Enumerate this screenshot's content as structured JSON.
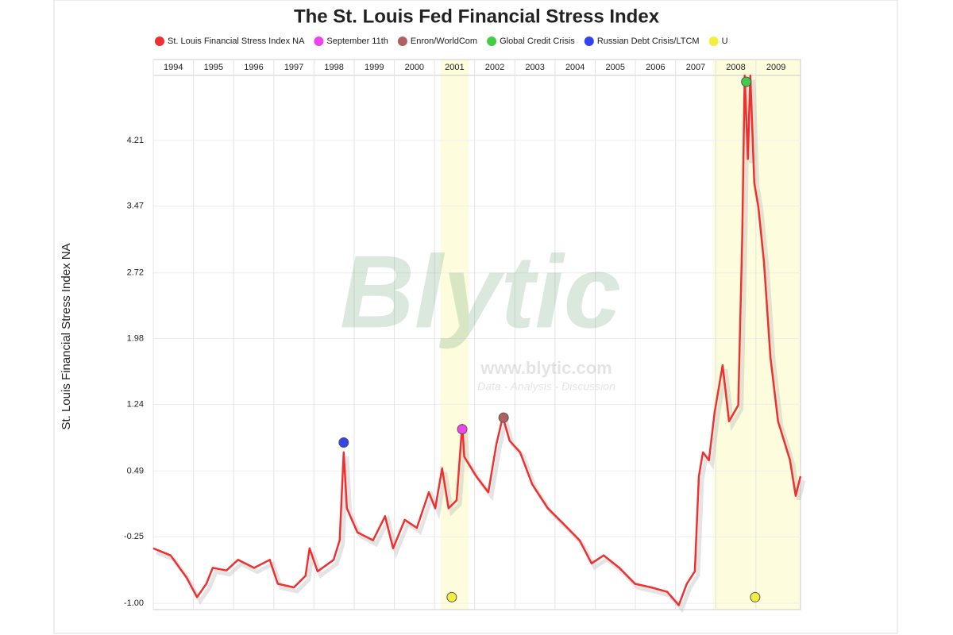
{
  "chart_data": {
    "type": "line",
    "title": "The St. Louis Fed Financial Stress Index",
    "y_label": "St. Louis Financial Stress Index NA",
    "watermark": {
      "logo": "Blytic",
      "url": "www.blytic.com",
      "tagline": "Data - Analysis - Discussion"
    },
    "xlim": [
      1994,
      2010.11
    ],
    "xticks": [
      1994,
      1995,
      1996,
      1997,
      1998,
      1999,
      2000,
      2001,
      2002,
      2003,
      2004,
      2005,
      2006,
      2007,
      2008,
      2009
    ],
    "ylim": [
      -1.07,
      5.12
    ],
    "yticks": [
      {
        "value": -1,
        "label": "-1.00"
      },
      -0.25,
      0.49,
      1.24,
      1.98,
      2.72,
      3.47,
      4.21
    ],
    "grid": true,
    "series": [
      {
        "name": "St. Louis Financial Stress Index NA",
        "color": "#f03030",
        "style": "line",
        "x": [
          1994.0,
          1994.43,
          1994.83,
          1995.09,
          1995.32,
          1995.48,
          1995.82,
          1996.11,
          1996.51,
          1996.9,
          1997.1,
          1997.5,
          1997.79,
          1997.89,
          1998.09,
          1998.49,
          1998.64,
          1998.74,
          1998.82,
          1999.08,
          1999.47,
          1999.77,
          1999.97,
          2000.26,
          2000.56,
          2000.86,
          2001.02,
          2001.19,
          2001.35,
          2001.55,
          2001.69,
          2001.74,
          2002.04,
          2002.34,
          2002.54,
          2002.7,
          2002.87,
          2003.13,
          2003.43,
          2003.82,
          2004.22,
          2004.61,
          2004.91,
          2005.21,
          2005.6,
          2005.99,
          2006.39,
          2006.79,
          2007.08,
          2007.28,
          2007.48,
          2007.58,
          2007.68,
          2007.83,
          2007.97,
          2008.17,
          2008.33,
          2008.56,
          2008.66,
          2008.72,
          2008.8,
          2008.86,
          2008.96,
          2009.06,
          2009.2,
          2009.36,
          2009.55,
          2009.85,
          2009.99,
          2010.11
        ],
        "values": [
          -0.38,
          -0.46,
          -0.71,
          -0.93,
          -0.78,
          -0.6,
          -0.63,
          -0.51,
          -0.6,
          -0.51,
          -0.78,
          -0.82,
          -0.69,
          -0.38,
          -0.64,
          -0.51,
          -0.29,
          0.7,
          0.07,
          -0.2,
          -0.29,
          -0.02,
          -0.38,
          -0.06,
          -0.15,
          0.25,
          0.07,
          0.52,
          0.07,
          0.16,
          1.01,
          0.65,
          0.43,
          0.25,
          0.79,
          1.1,
          0.83,
          0.7,
          0.34,
          0.07,
          -0.11,
          -0.29,
          -0.55,
          -0.46,
          -0.6,
          -0.78,
          -0.82,
          -0.87,
          -1.02,
          -0.78,
          -0.64,
          0.43,
          0.7,
          0.61,
          1.14,
          1.68,
          1.05,
          1.23,
          3.11,
          4.94,
          4.0,
          4.94,
          3.73,
          3.46,
          2.84,
          1.77,
          1.05,
          0.61,
          0.21,
          0.43
        ]
      },
      {
        "name": "September 11th",
        "color": "#ee44ee",
        "style": "points",
        "x": [
          2001.69
        ],
        "values": [
          0.96
        ]
      },
      {
        "name": "Enron/WorldCom",
        "color": "#b06060",
        "style": "points",
        "x": [
          2002.72
        ],
        "values": [
          1.09
        ]
      },
      {
        "name": "Global Credit Crisis",
        "color": "#44cc44",
        "style": "points",
        "x": [
          2008.76
        ],
        "values": [
          4.87
        ]
      },
      {
        "name": "Russian Debt Crisis/LTCM",
        "color": "#3344ee",
        "style": "points",
        "x": [
          1998.74
        ],
        "values": [
          0.81
        ]
      },
      {
        "name": "U",
        "color": "#f2ee40",
        "style": "points",
        "x": [
          2001.43,
          2008.98
        ],
        "values": [
          -0.93,
          -0.93
        ],
        "bands": [
          [
            2001.15,
            2001.85
          ],
          [
            2007.93,
            2010.11
          ]
        ]
      }
    ]
  }
}
